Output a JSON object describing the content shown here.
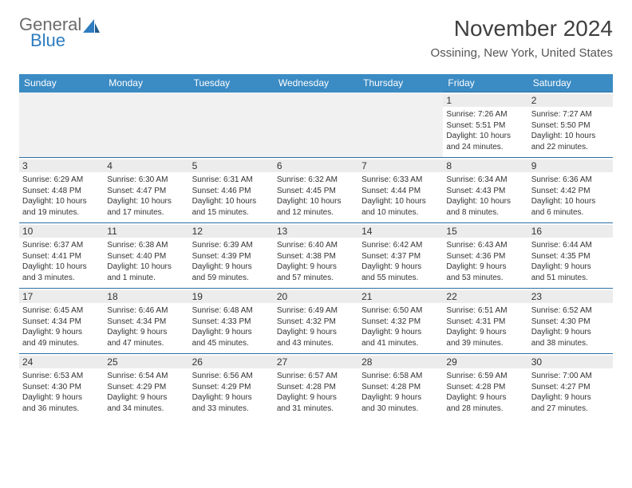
{
  "logo": {
    "text1": "General",
    "text2": "Blue",
    "color_general": "#6b6b6b",
    "color_blue": "#2d7cc0"
  },
  "title": "November 2024",
  "location": "Ossining, New York, United States",
  "colors": {
    "header_bg": "#3b8bc4",
    "header_text": "#ffffff",
    "day_border": "#2d6fa3",
    "daynum_bg": "#ececec",
    "body_text": "#333333",
    "page_bg": "#ffffff"
  },
  "font": {
    "title_size": 28,
    "location_size": 15,
    "header_size": 12,
    "daynum_size": 12,
    "body_size": 10
  },
  "day_headers": [
    "Sunday",
    "Monday",
    "Tuesday",
    "Wednesday",
    "Thursday",
    "Friday",
    "Saturday"
  ],
  "weeks": [
    [
      null,
      null,
      null,
      null,
      null,
      {
        "num": "1",
        "sunrise": "Sunrise: 7:26 AM",
        "sunset": "Sunset: 5:51 PM",
        "daylight1": "Daylight: 10 hours",
        "daylight2": "and 24 minutes."
      },
      {
        "num": "2",
        "sunrise": "Sunrise: 7:27 AM",
        "sunset": "Sunset: 5:50 PM",
        "daylight1": "Daylight: 10 hours",
        "daylight2": "and 22 minutes."
      }
    ],
    [
      {
        "num": "3",
        "sunrise": "Sunrise: 6:29 AM",
        "sunset": "Sunset: 4:48 PM",
        "daylight1": "Daylight: 10 hours",
        "daylight2": "and 19 minutes."
      },
      {
        "num": "4",
        "sunrise": "Sunrise: 6:30 AM",
        "sunset": "Sunset: 4:47 PM",
        "daylight1": "Daylight: 10 hours",
        "daylight2": "and 17 minutes."
      },
      {
        "num": "5",
        "sunrise": "Sunrise: 6:31 AM",
        "sunset": "Sunset: 4:46 PM",
        "daylight1": "Daylight: 10 hours",
        "daylight2": "and 15 minutes."
      },
      {
        "num": "6",
        "sunrise": "Sunrise: 6:32 AM",
        "sunset": "Sunset: 4:45 PM",
        "daylight1": "Daylight: 10 hours",
        "daylight2": "and 12 minutes."
      },
      {
        "num": "7",
        "sunrise": "Sunrise: 6:33 AM",
        "sunset": "Sunset: 4:44 PM",
        "daylight1": "Daylight: 10 hours",
        "daylight2": "and 10 minutes."
      },
      {
        "num": "8",
        "sunrise": "Sunrise: 6:34 AM",
        "sunset": "Sunset: 4:43 PM",
        "daylight1": "Daylight: 10 hours",
        "daylight2": "and 8 minutes."
      },
      {
        "num": "9",
        "sunrise": "Sunrise: 6:36 AM",
        "sunset": "Sunset: 4:42 PM",
        "daylight1": "Daylight: 10 hours",
        "daylight2": "and 6 minutes."
      }
    ],
    [
      {
        "num": "10",
        "sunrise": "Sunrise: 6:37 AM",
        "sunset": "Sunset: 4:41 PM",
        "daylight1": "Daylight: 10 hours",
        "daylight2": "and 3 minutes."
      },
      {
        "num": "11",
        "sunrise": "Sunrise: 6:38 AM",
        "sunset": "Sunset: 4:40 PM",
        "daylight1": "Daylight: 10 hours",
        "daylight2": "and 1 minute."
      },
      {
        "num": "12",
        "sunrise": "Sunrise: 6:39 AM",
        "sunset": "Sunset: 4:39 PM",
        "daylight1": "Daylight: 9 hours",
        "daylight2": "and 59 minutes."
      },
      {
        "num": "13",
        "sunrise": "Sunrise: 6:40 AM",
        "sunset": "Sunset: 4:38 PM",
        "daylight1": "Daylight: 9 hours",
        "daylight2": "and 57 minutes."
      },
      {
        "num": "14",
        "sunrise": "Sunrise: 6:42 AM",
        "sunset": "Sunset: 4:37 PM",
        "daylight1": "Daylight: 9 hours",
        "daylight2": "and 55 minutes."
      },
      {
        "num": "15",
        "sunrise": "Sunrise: 6:43 AM",
        "sunset": "Sunset: 4:36 PM",
        "daylight1": "Daylight: 9 hours",
        "daylight2": "and 53 minutes."
      },
      {
        "num": "16",
        "sunrise": "Sunrise: 6:44 AM",
        "sunset": "Sunset: 4:35 PM",
        "daylight1": "Daylight: 9 hours",
        "daylight2": "and 51 minutes."
      }
    ],
    [
      {
        "num": "17",
        "sunrise": "Sunrise: 6:45 AM",
        "sunset": "Sunset: 4:34 PM",
        "daylight1": "Daylight: 9 hours",
        "daylight2": "and 49 minutes."
      },
      {
        "num": "18",
        "sunrise": "Sunrise: 6:46 AM",
        "sunset": "Sunset: 4:34 PM",
        "daylight1": "Daylight: 9 hours",
        "daylight2": "and 47 minutes."
      },
      {
        "num": "19",
        "sunrise": "Sunrise: 6:48 AM",
        "sunset": "Sunset: 4:33 PM",
        "daylight1": "Daylight: 9 hours",
        "daylight2": "and 45 minutes."
      },
      {
        "num": "20",
        "sunrise": "Sunrise: 6:49 AM",
        "sunset": "Sunset: 4:32 PM",
        "daylight1": "Daylight: 9 hours",
        "daylight2": "and 43 minutes."
      },
      {
        "num": "21",
        "sunrise": "Sunrise: 6:50 AM",
        "sunset": "Sunset: 4:32 PM",
        "daylight1": "Daylight: 9 hours",
        "daylight2": "and 41 minutes."
      },
      {
        "num": "22",
        "sunrise": "Sunrise: 6:51 AM",
        "sunset": "Sunset: 4:31 PM",
        "daylight1": "Daylight: 9 hours",
        "daylight2": "and 39 minutes."
      },
      {
        "num": "23",
        "sunrise": "Sunrise: 6:52 AM",
        "sunset": "Sunset: 4:30 PM",
        "daylight1": "Daylight: 9 hours",
        "daylight2": "and 38 minutes."
      }
    ],
    [
      {
        "num": "24",
        "sunrise": "Sunrise: 6:53 AM",
        "sunset": "Sunset: 4:30 PM",
        "daylight1": "Daylight: 9 hours",
        "daylight2": "and 36 minutes."
      },
      {
        "num": "25",
        "sunrise": "Sunrise: 6:54 AM",
        "sunset": "Sunset: 4:29 PM",
        "daylight1": "Daylight: 9 hours",
        "daylight2": "and 34 minutes."
      },
      {
        "num": "26",
        "sunrise": "Sunrise: 6:56 AM",
        "sunset": "Sunset: 4:29 PM",
        "daylight1": "Daylight: 9 hours",
        "daylight2": "and 33 minutes."
      },
      {
        "num": "27",
        "sunrise": "Sunrise: 6:57 AM",
        "sunset": "Sunset: 4:28 PM",
        "daylight1": "Daylight: 9 hours",
        "daylight2": "and 31 minutes."
      },
      {
        "num": "28",
        "sunrise": "Sunrise: 6:58 AM",
        "sunset": "Sunset: 4:28 PM",
        "daylight1": "Daylight: 9 hours",
        "daylight2": "and 30 minutes."
      },
      {
        "num": "29",
        "sunrise": "Sunrise: 6:59 AM",
        "sunset": "Sunset: 4:28 PM",
        "daylight1": "Daylight: 9 hours",
        "daylight2": "and 28 minutes."
      },
      {
        "num": "30",
        "sunrise": "Sunrise: 7:00 AM",
        "sunset": "Sunset: 4:27 PM",
        "daylight1": "Daylight: 9 hours",
        "daylight2": "and 27 minutes."
      }
    ]
  ]
}
